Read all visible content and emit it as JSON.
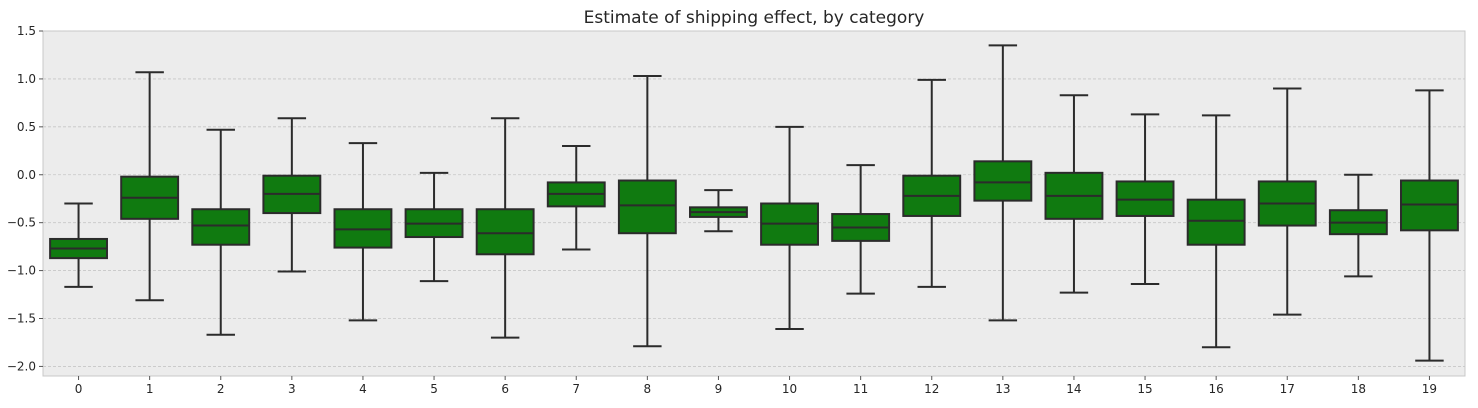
{
  "chart_data": {
    "type": "box",
    "title": "Estimate of shipping effect, by category",
    "xlabel": "",
    "ylabel": "",
    "ylim": [
      -2.1,
      1.5
    ],
    "yticks": [
      1.5,
      1.0,
      0.5,
      0.0,
      -0.5,
      -1.0,
      -1.5,
      -2.0
    ],
    "ytick_labels": [
      "1.5",
      "1.0",
      "0.5",
      "0.0",
      "−0.5",
      "−1.0",
      "−1.5",
      "−2.0"
    ],
    "grid": true,
    "box_color": "#107a10",
    "edge_color": "#2b2b2b",
    "background": "#ececec",
    "categories": [
      "0",
      "1",
      "2",
      "3",
      "4",
      "5",
      "6",
      "7",
      "8",
      "9",
      "10",
      "11",
      "12",
      "13",
      "14",
      "15",
      "16",
      "17",
      "18",
      "19"
    ],
    "boxes": [
      {
        "min": -1.17,
        "q1": -0.87,
        "median": -0.77,
        "q3": -0.67,
        "max": -0.3
      },
      {
        "min": -1.31,
        "q1": -0.46,
        "median": -0.24,
        "q3": -0.02,
        "max": 1.07
      },
      {
        "min": -1.67,
        "q1": -0.73,
        "median": -0.53,
        "q3": -0.36,
        "max": 0.47
      },
      {
        "min": -1.01,
        "q1": -0.4,
        "median": -0.2,
        "q3": -0.01,
        "max": 0.59
      },
      {
        "min": -1.52,
        "q1": -0.76,
        "median": -0.57,
        "q3": -0.36,
        "max": 0.33
      },
      {
        "min": -1.11,
        "q1": -0.65,
        "median": -0.51,
        "q3": -0.36,
        "max": 0.02
      },
      {
        "min": -1.7,
        "q1": -0.83,
        "median": -0.61,
        "q3": -0.36,
        "max": 0.59
      },
      {
        "min": -0.78,
        "q1": -0.33,
        "median": -0.2,
        "q3": -0.08,
        "max": 0.3
      },
      {
        "min": -1.79,
        "q1": -0.61,
        "median": -0.32,
        "q3": -0.06,
        "max": 1.03
      },
      {
        "min": -0.59,
        "q1": -0.44,
        "median": -0.39,
        "q3": -0.34,
        "max": -0.16
      },
      {
        "min": -1.61,
        "q1": -0.73,
        "median": -0.51,
        "q3": -0.3,
        "max": 0.5
      },
      {
        "min": -1.24,
        "q1": -0.69,
        "median": -0.55,
        "q3": -0.41,
        "max": 0.1
      },
      {
        "min": -1.17,
        "q1": -0.43,
        "median": -0.22,
        "q3": -0.01,
        "max": 0.99
      },
      {
        "min": -1.52,
        "q1": -0.27,
        "median": -0.08,
        "q3": 0.14,
        "max": 1.35
      },
      {
        "min": -1.23,
        "q1": -0.46,
        "median": -0.22,
        "q3": 0.02,
        "max": 0.83
      },
      {
        "min": -1.14,
        "q1": -0.43,
        "median": -0.26,
        "q3": -0.07,
        "max": 0.63
      },
      {
        "min": -1.8,
        "q1": -0.73,
        "median": -0.48,
        "q3": -0.26,
        "max": 0.62
      },
      {
        "min": -1.46,
        "q1": -0.53,
        "median": -0.3,
        "q3": -0.07,
        "max": 0.9
      },
      {
        "min": -1.06,
        "q1": -0.62,
        "median": -0.5,
        "q3": -0.37,
        "max": 0.0
      },
      {
        "min": -1.94,
        "q1": -0.58,
        "median": -0.31,
        "q3": -0.06,
        "max": 0.88
      }
    ]
  }
}
